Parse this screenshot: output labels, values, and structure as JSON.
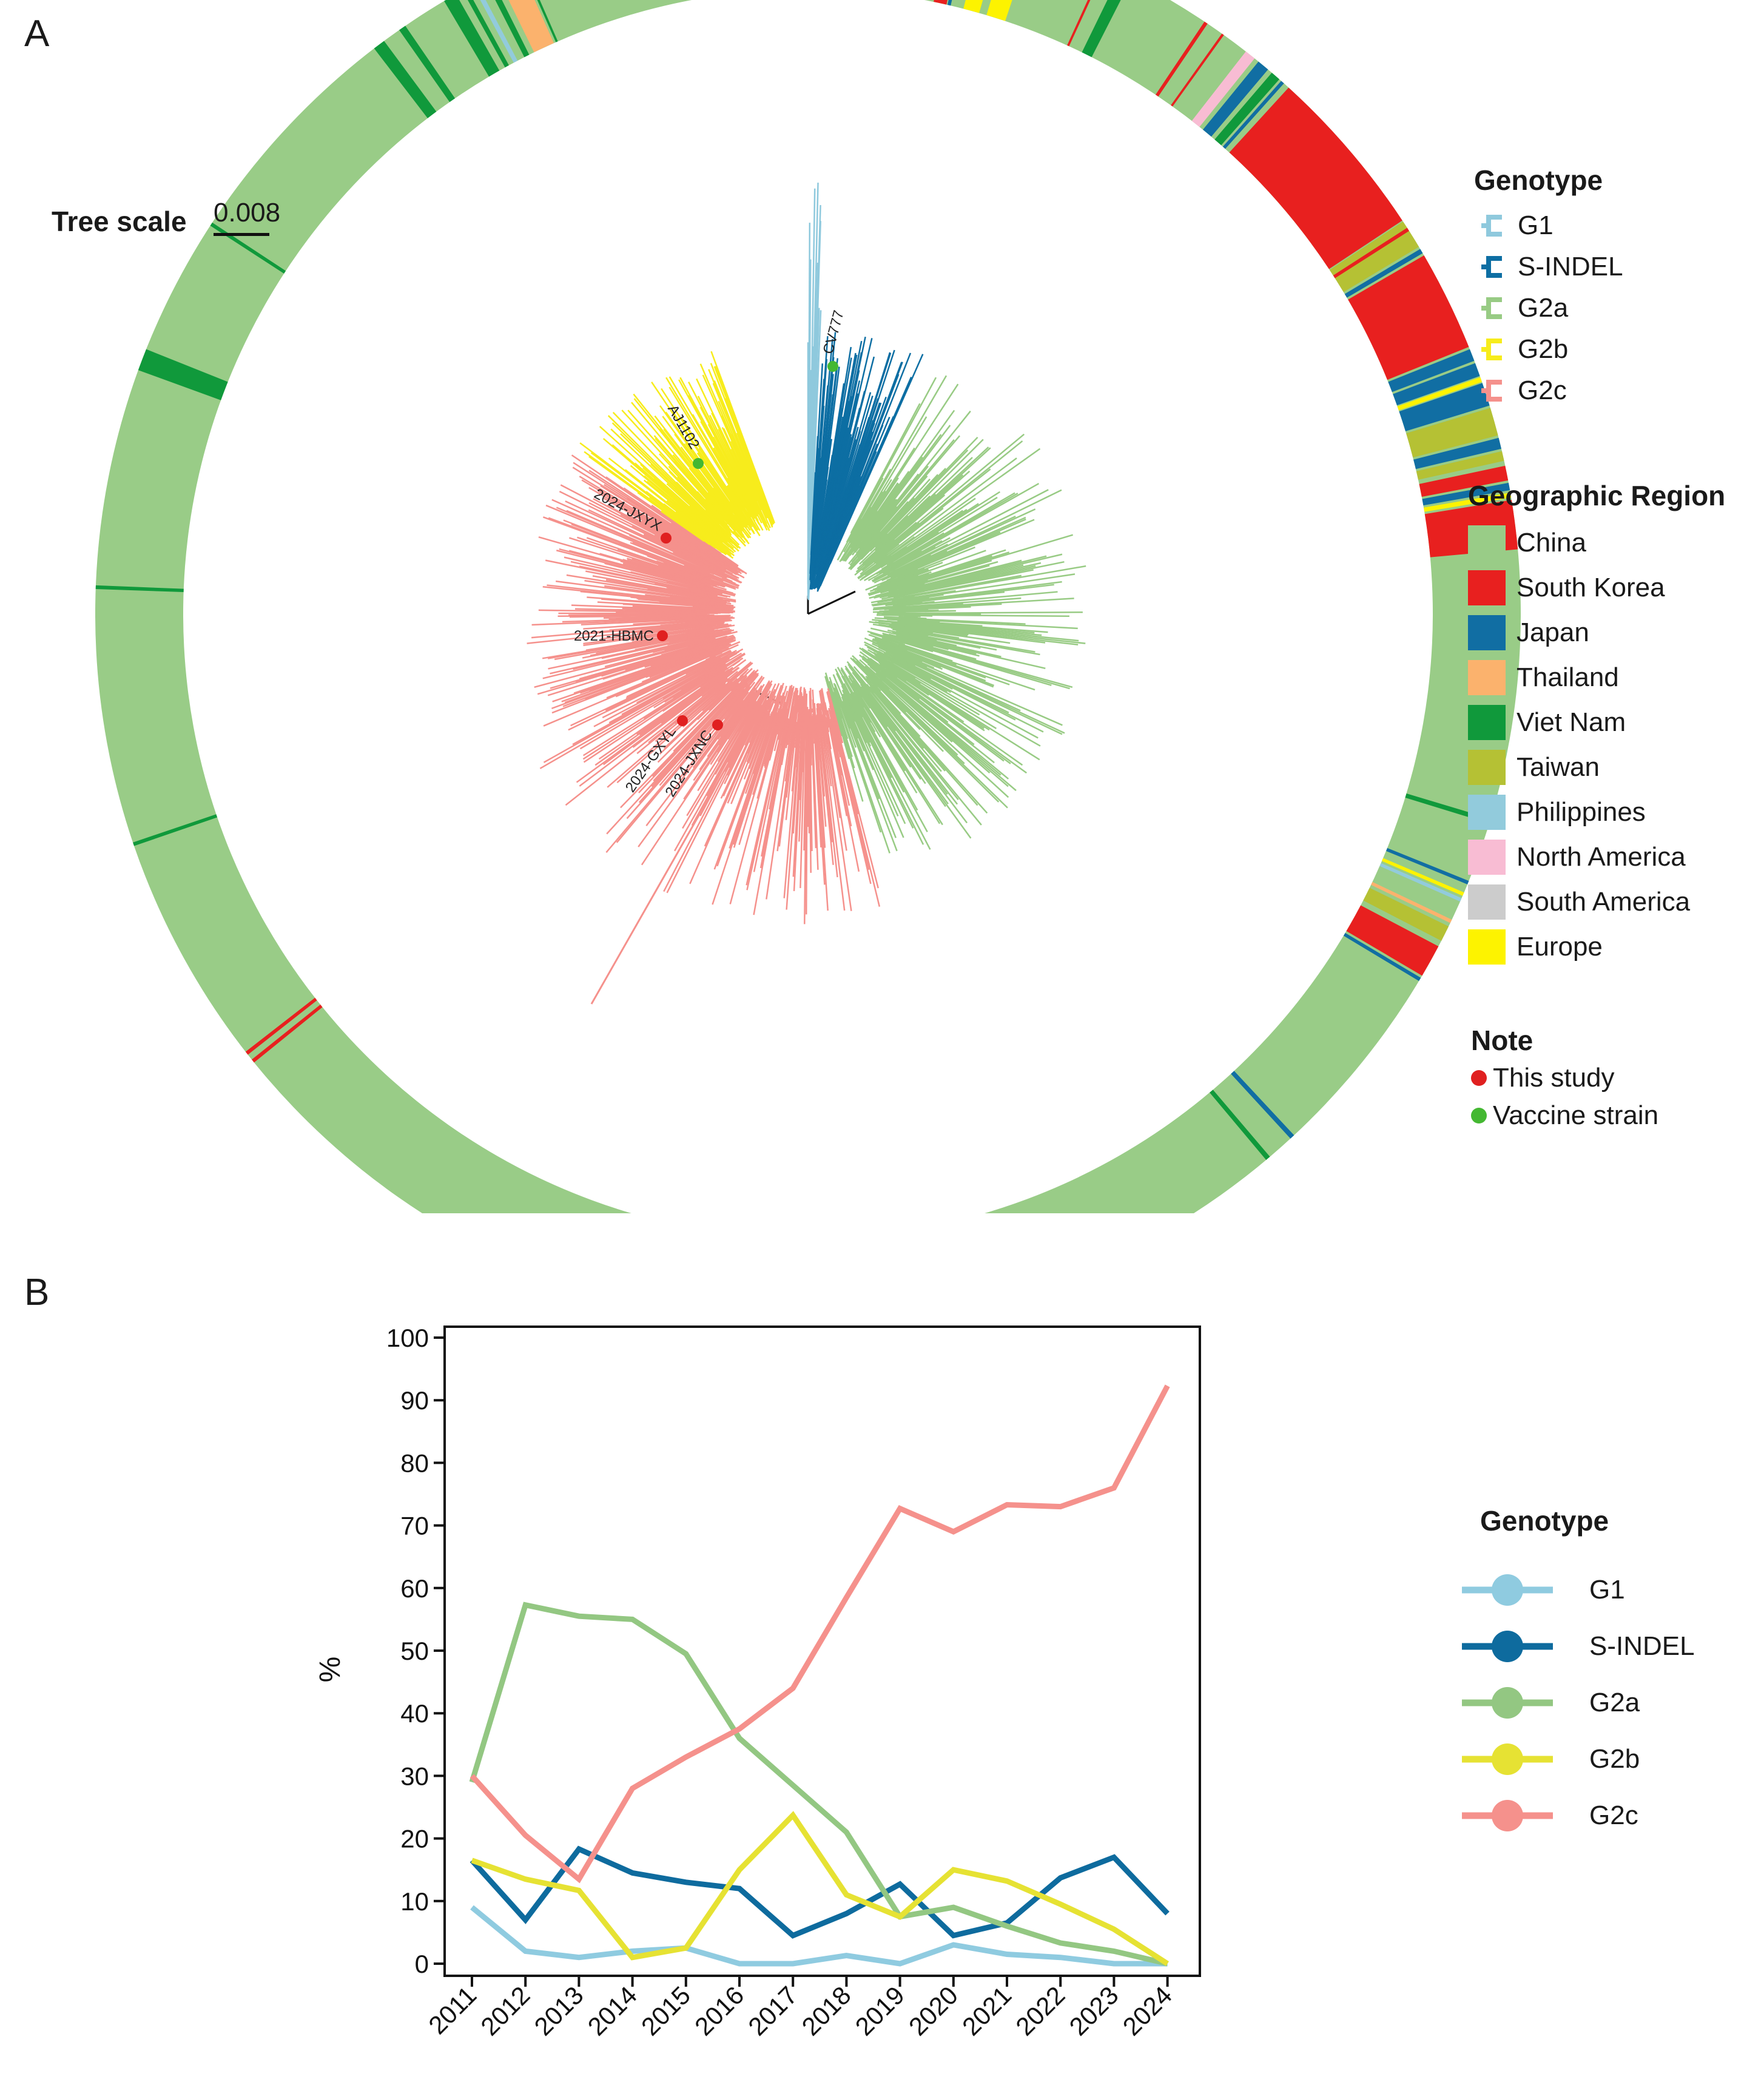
{
  "panel_labels": {
    "a": "A",
    "b": "B"
  },
  "tree": {
    "scale_label": "Tree scale",
    "scale_value": "0.008",
    "strain_labels": [
      "CV777",
      "AJ1102",
      "2024-JXYX",
      "2021-HBMC",
      "2024-GXYL",
      "2024-JXNC"
    ]
  },
  "genotype_legend": {
    "title": "Genotype",
    "items": [
      {
        "label": "G1",
        "color": "#8fc9dd"
      },
      {
        "label": "S-INDEL",
        "color": "#0d6ea3"
      },
      {
        "label": "G2a",
        "color": "#98cb84"
      },
      {
        "label": "G2b",
        "color": "#f7ec1c"
      },
      {
        "label": "G2c",
        "color": "#f5918c"
      }
    ]
  },
  "region_legend": {
    "title": "Geographic Region",
    "items": [
      {
        "label": "China",
        "color": "#99cc87"
      },
      {
        "label": "South Korea",
        "color": "#e8201f"
      },
      {
        "label": "Japan",
        "color": "#116ea3"
      },
      {
        "label": "Thailand",
        "color": "#fbb26d"
      },
      {
        "label": "Viet Nam",
        "color": "#10993b"
      },
      {
        "label": "Taiwan",
        "color": "#b5c134"
      },
      {
        "label": "Philippines",
        "color": "#92cbdc"
      },
      {
        "label": "North America",
        "color": "#f8bcd3"
      },
      {
        "label": "South America",
        "color": "#cccccc"
      },
      {
        "label": "Europe",
        "color": "#fdf300"
      }
    ]
  },
  "note_legend": {
    "title": "Note",
    "items": [
      {
        "label": "This study",
        "color": "#e02020"
      },
      {
        "label": "Vaccine strain",
        "color": "#44b832"
      }
    ]
  },
  "chart_data": {
    "type": "line",
    "title": "",
    "xlabel": "",
    "ylabel": "%",
    "ylim": [
      0,
      100
    ],
    "yticks": [
      "0",
      "10",
      "20",
      "30",
      "40",
      "50",
      "60",
      "70",
      "80",
      "90",
      "100"
    ],
    "x": [
      "2011",
      "2012",
      "2013",
      "2014",
      "2015",
      "2016",
      "2017",
      "2018",
      "2019",
      "2020",
      "2021",
      "2022",
      "2023",
      "2024"
    ],
    "legend_title": "Genotype",
    "series": [
      {
        "name": "G1",
        "color": "#8fcbe0",
        "values": [
          9,
          2,
          1,
          2,
          2.5,
          0,
          0,
          1.3,
          0,
          3,
          1.5,
          1,
          0,
          0
        ]
      },
      {
        "name": "S-INDEL",
        "color": "#0e6b9e",
        "values": [
          16.5,
          7,
          18.3,
          14.5,
          13,
          12,
          4.5,
          8,
          12.7,
          4.5,
          6.5,
          13.7,
          17,
          8
        ]
      },
      {
        "name": "G2a",
        "color": "#93c782",
        "values": [
          29,
          57.3,
          55.5,
          55,
          49.5,
          36,
          28.5,
          21,
          7.5,
          9,
          6,
          3.3,
          2,
          0
        ]
      },
      {
        "name": "G2b",
        "color": "#e6e233",
        "values": [
          16.5,
          13.5,
          11.7,
          1,
          2.5,
          15,
          23.7,
          11,
          7.5,
          15,
          13.2,
          9.5,
          5.5,
          0
        ]
      },
      {
        "name": "G2c",
        "color": "#f5918c",
        "values": [
          30,
          20.5,
          13.5,
          28,
          33,
          37.5,
          44,
          58.5,
          72.7,
          69,
          73.3,
          73,
          76,
          92.3
        ]
      }
    ]
  }
}
